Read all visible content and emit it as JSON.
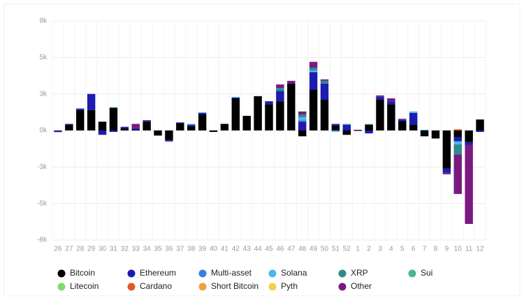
{
  "chart_data": {
    "type": "stacked_bar",
    "categories": [
      "26",
      "27",
      "28",
      "29",
      "30",
      "31",
      "32",
      "33",
      "34",
      "35",
      "36",
      "37",
      "38",
      "39",
      "40",
      "41",
      "42",
      "43",
      "44",
      "45",
      "46",
      "47",
      "48",
      "49",
      "50",
      "51",
      "52",
      "1",
      "2",
      "3",
      "4",
      "5",
      "6",
      "7",
      "8",
      "9",
      "10",
      "11",
      "12"
    ],
    "ylim": [
      -7500,
      7500
    ],
    "yticks": [
      {
        "value": -7500,
        "label": "-8k"
      },
      {
        "value": -5000,
        "label": "-5k"
      },
      {
        "value": -2500,
        "label": "-3k"
      },
      {
        "value": 0,
        "label": "0k"
      },
      {
        "value": 2500,
        "label": "3k"
      },
      {
        "value": 5000,
        "label": "5k"
      },
      {
        "value": 7500,
        "label": "8k"
      }
    ],
    "grid": true,
    "series": [
      {
        "name": "Bitcoin",
        "color": "#000000",
        "values": [
          -30,
          400,
          1400,
          1400,
          600,
          1550,
          150,
          50,
          600,
          -350,
          -650,
          500,
          300,
          1100,
          -100,
          450,
          2200,
          1000,
          2350,
          1800,
          2000,
          3200,
          -400,
          2800,
          2100,
          350,
          -300,
          -30,
          400,
          2100,
          1800,
          650,
          400,
          -400,
          -550,
          -2600,
          -450,
          -800,
          750
        ]
      },
      {
        "name": "Ethereum",
        "color": "#1c1cb0",
        "values": [
          -80,
          50,
          100,
          1100,
          -300,
          -100,
          100,
          100,
          100,
          0,
          -100,
          50,
          100,
          100,
          0,
          0,
          50,
          0,
          0,
          200,
          700,
          0,
          600,
          1200,
          1100,
          100,
          400,
          0,
          -200,
          200,
          200,
          100,
          800,
          0,
          0,
          -300,
          -300,
          -200,
          -100
        ]
      },
      {
        "name": "Multi-asset",
        "color": "#3b7de0",
        "values": [
          0,
          0,
          0,
          0,
          0,
          0,
          0,
          0,
          0,
          0,
          0,
          0,
          0,
          0,
          0,
          0,
          0,
          0,
          0,
          0,
          0,
          0,
          100,
          0,
          0,
          0,
          0,
          0,
          0,
          0,
          0,
          0,
          0,
          0,
          0,
          0,
          0,
          0,
          0
        ]
      },
      {
        "name": "Solana",
        "color": "#4db8e8",
        "values": [
          0,
          0,
          0,
          0,
          0,
          50,
          0,
          0,
          0,
          0,
          0,
          0,
          50,
          50,
          0,
          0,
          50,
          0,
          0,
          0,
          0,
          0,
          200,
          100,
          0,
          -100,
          50,
          0,
          50,
          0,
          0,
          0,
          100,
          50,
          0,
          0,
          -200,
          0,
          0
        ]
      },
      {
        "name": "XRP",
        "color": "#2e8b8b",
        "values": [
          0,
          0,
          0,
          0,
          0,
          0,
          0,
          0,
          0,
          0,
          0,
          0,
          0,
          0,
          0,
          0,
          0,
          0,
          0,
          0,
          200,
          0,
          200,
          200,
          200,
          0,
          0,
          0,
          0,
          0,
          0,
          0,
          0,
          0,
          0,
          0,
          -700,
          0,
          0
        ]
      },
      {
        "name": "Sui",
        "color": "#4cb88a",
        "values": [
          0,
          0,
          0,
          0,
          0,
          0,
          0,
          0,
          0,
          0,
          0,
          0,
          0,
          0,
          0,
          0,
          0,
          0,
          0,
          0,
          0,
          0,
          0,
          0,
          0,
          0,
          0,
          0,
          0,
          0,
          0,
          0,
          0,
          0,
          0,
          0,
          0,
          0,
          0
        ]
      },
      {
        "name": "Litecoin",
        "color": "#7ddc6e",
        "values": [
          0,
          0,
          0,
          0,
          0,
          0,
          0,
          0,
          0,
          0,
          0,
          0,
          0,
          0,
          0,
          0,
          0,
          0,
          0,
          0,
          0,
          0,
          0,
          0,
          0,
          0,
          0,
          0,
          0,
          0,
          0,
          0,
          0,
          0,
          0,
          0,
          0,
          0,
          0
        ]
      },
      {
        "name": "Cardano",
        "color": "#e0572a",
        "values": [
          0,
          0,
          0,
          0,
          0,
          0,
          0,
          0,
          0,
          0,
          0,
          0,
          0,
          0,
          0,
          0,
          0,
          0,
          0,
          0,
          0,
          0,
          0,
          0,
          0,
          0,
          0,
          0,
          0,
          0,
          0,
          0,
          0,
          0,
          0,
          0,
          50,
          0,
          0
        ]
      },
      {
        "name": "Short Bitcoin",
        "color": "#f0a040",
        "values": [
          0,
          0,
          0,
          0,
          0,
          0,
          0,
          0,
          0,
          0,
          0,
          0,
          0,
          0,
          0,
          0,
          0,
          0,
          0,
          0,
          0,
          0,
          0,
          0,
          0,
          0,
          0,
          0,
          0,
          0,
          0,
          0,
          0,
          0,
          0,
          0,
          50,
          0,
          0
        ]
      },
      {
        "name": "Pyth",
        "color": "#f2d04a",
        "values": [
          0,
          0,
          0,
          0,
          0,
          0,
          0,
          0,
          0,
          0,
          0,
          0,
          0,
          0,
          0,
          0,
          0,
          0,
          0,
          0,
          0,
          0,
          0,
          0,
          0,
          0,
          0,
          0,
          0,
          0,
          0,
          0,
          0,
          0,
          0,
          0,
          0,
          0,
          0
        ]
      },
      {
        "name": "Other",
        "color": "#7a1a80",
        "values": [
          0,
          0,
          0,
          0,
          0,
          0,
          0,
          300,
          0,
          0,
          0,
          0,
          0,
          0,
          0,
          0,
          0,
          0,
          0,
          0,
          250,
          200,
          200,
          400,
          100,
          0,
          0,
          50,
          0,
          100,
          200,
          50,
          0,
          0,
          0,
          -100,
          -2700,
          -5400,
          0
        ]
      }
    ]
  }
}
